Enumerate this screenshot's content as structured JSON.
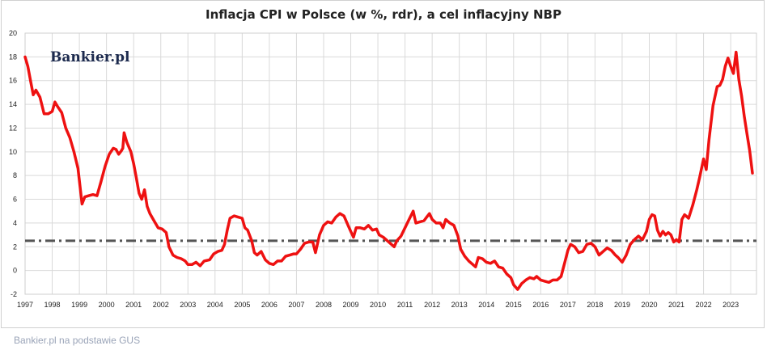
{
  "chart_data": {
    "type": "line",
    "title": "Inflacja CPI w Polsce (w %, rdr), a cel inflacyjny NBP",
    "xlabel": "",
    "ylabel": "",
    "ylim": [
      -2,
      20
    ],
    "y_ticks": [
      "-2",
      "0",
      "2",
      "4",
      "6",
      "8",
      "10",
      "12",
      "14",
      "16",
      "18",
      "20"
    ],
    "x_tick_labels": [
      "1997",
      "1998",
      "1999",
      "2000",
      "2001",
      "2002",
      "2003",
      "2004",
      "2005",
      "2006",
      "2007",
      "2008",
      "2009",
      "2010",
      "2011",
      "2012",
      "2013",
      "2014",
      "2015",
      "2016",
      "2017",
      "2018",
      "2019",
      "2020",
      "2021",
      "2022",
      "2023"
    ],
    "grid": true,
    "series": [
      {
        "color": "#ee1111",
        "points": [
          [
            1997.0,
            18.0
          ],
          [
            1997.1,
            17.2
          ],
          [
            1997.2,
            16.0
          ],
          [
            1997.3,
            14.8
          ],
          [
            1997.4,
            15.2
          ],
          [
            1997.55,
            14.6
          ],
          [
            1997.7,
            13.2
          ],
          [
            1997.85,
            13.2
          ],
          [
            1998.0,
            13.4
          ],
          [
            1998.1,
            14.2
          ],
          [
            1998.2,
            13.8
          ],
          [
            1998.35,
            13.3
          ],
          [
            1998.5,
            12.0
          ],
          [
            1998.65,
            11.2
          ],
          [
            1998.8,
            10.0
          ],
          [
            1998.95,
            8.6
          ],
          [
            1999.1,
            5.6
          ],
          [
            1999.2,
            6.2
          ],
          [
            1999.35,
            6.3
          ],
          [
            1999.5,
            6.4
          ],
          [
            1999.65,
            6.3
          ],
          [
            1999.8,
            7.5
          ],
          [
            1999.95,
            8.8
          ],
          [
            2000.1,
            9.8
          ],
          [
            2000.25,
            10.3
          ],
          [
            2000.35,
            10.2
          ],
          [
            2000.45,
            9.8
          ],
          [
            2000.55,
            10.1
          ],
          [
            2000.6,
            10.3
          ],
          [
            2000.65,
            11.6
          ],
          [
            2000.75,
            10.8
          ],
          [
            2000.9,
            10.0
          ],
          [
            2001.0,
            9.0
          ],
          [
            2001.1,
            7.8
          ],
          [
            2001.2,
            6.5
          ],
          [
            2001.3,
            6.0
          ],
          [
            2001.4,
            6.8
          ],
          [
            2001.5,
            5.4
          ],
          [
            2001.6,
            4.8
          ],
          [
            2001.75,
            4.2
          ],
          [
            2001.9,
            3.6
          ],
          [
            2002.05,
            3.5
          ],
          [
            2002.2,
            3.2
          ],
          [
            2002.3,
            2.0
          ],
          [
            2002.45,
            1.3
          ],
          [
            2002.6,
            1.1
          ],
          [
            2002.75,
            1.0
          ],
          [
            2002.9,
            0.8
          ],
          [
            2003.0,
            0.5
          ],
          [
            2003.15,
            0.5
          ],
          [
            2003.3,
            0.7
          ],
          [
            2003.45,
            0.4
          ],
          [
            2003.6,
            0.8
          ],
          [
            2003.8,
            0.9
          ],
          [
            2003.95,
            1.4
          ],
          [
            2004.1,
            1.6
          ],
          [
            2004.25,
            1.7
          ],
          [
            2004.35,
            2.2
          ],
          [
            2004.45,
            3.4
          ],
          [
            2004.55,
            4.4
          ],
          [
            2004.7,
            4.6
          ],
          [
            2004.85,
            4.5
          ],
          [
            2005.0,
            4.4
          ],
          [
            2005.1,
            3.6
          ],
          [
            2005.2,
            3.4
          ],
          [
            2005.35,
            2.5
          ],
          [
            2005.45,
            1.5
          ],
          [
            2005.55,
            1.3
          ],
          [
            2005.7,
            1.6
          ],
          [
            2005.85,
            0.9
          ],
          [
            2006.0,
            0.6
          ],
          [
            2006.15,
            0.5
          ],
          [
            2006.3,
            0.8
          ],
          [
            2006.45,
            0.8
          ],
          [
            2006.6,
            1.2
          ],
          [
            2006.75,
            1.3
          ],
          [
            2006.9,
            1.4
          ],
          [
            2007.0,
            1.4
          ],
          [
            2007.15,
            1.8
          ],
          [
            2007.3,
            2.3
          ],
          [
            2007.45,
            2.4
          ],
          [
            2007.6,
            2.4
          ],
          [
            2007.7,
            1.5
          ],
          [
            2007.85,
            3.0
          ],
          [
            2008.0,
            3.8
          ],
          [
            2008.15,
            4.1
          ],
          [
            2008.3,
            4.0
          ],
          [
            2008.45,
            4.5
          ],
          [
            2008.6,
            4.8
          ],
          [
            2008.75,
            4.6
          ],
          [
            2008.9,
            3.8
          ],
          [
            2009.0,
            3.3
          ],
          [
            2009.1,
            2.8
          ],
          [
            2009.2,
            3.6
          ],
          [
            2009.35,
            3.6
          ],
          [
            2009.5,
            3.5
          ],
          [
            2009.65,
            3.8
          ],
          [
            2009.8,
            3.4
          ],
          [
            2009.95,
            3.5
          ],
          [
            2010.05,
            3.0
          ],
          [
            2010.2,
            2.8
          ],
          [
            2010.35,
            2.5
          ],
          [
            2010.5,
            2.2
          ],
          [
            2010.6,
            2.0
          ],
          [
            2010.7,
            2.5
          ],
          [
            2010.85,
            2.9
          ],
          [
            2011.0,
            3.6
          ],
          [
            2011.15,
            4.3
          ],
          [
            2011.3,
            5.0
          ],
          [
            2011.4,
            4.0
          ],
          [
            2011.55,
            4.1
          ],
          [
            2011.7,
            4.2
          ],
          [
            2011.8,
            4.5
          ],
          [
            2011.9,
            4.8
          ],
          [
            2012.0,
            4.3
          ],
          [
            2012.15,
            4.0
          ],
          [
            2012.3,
            4.0
          ],
          [
            2012.4,
            3.6
          ],
          [
            2012.5,
            4.3
          ],
          [
            2012.65,
            4.0
          ],
          [
            2012.8,
            3.8
          ],
          [
            2012.95,
            2.9
          ],
          [
            2013.05,
            1.8
          ],
          [
            2013.2,
            1.2
          ],
          [
            2013.35,
            0.8
          ],
          [
            2013.5,
            0.5
          ],
          [
            2013.6,
            0.3
          ],
          [
            2013.7,
            1.1
          ],
          [
            2013.85,
            1.0
          ],
          [
            2014.0,
            0.7
          ],
          [
            2014.15,
            0.6
          ],
          [
            2014.3,
            0.8
          ],
          [
            2014.45,
            0.3
          ],
          [
            2014.6,
            0.2
          ],
          [
            2014.75,
            -0.3
          ],
          [
            2014.9,
            -0.6
          ],
          [
            2015.0,
            -1.2
          ],
          [
            2015.15,
            -1.6
          ],
          [
            2015.3,
            -1.1
          ],
          [
            2015.45,
            -0.8
          ],
          [
            2015.6,
            -0.6
          ],
          [
            2015.75,
            -0.7
          ],
          [
            2015.85,
            -0.5
          ],
          [
            2016.0,
            -0.8
          ],
          [
            2016.15,
            -0.9
          ],
          [
            2016.3,
            -1.0
          ],
          [
            2016.45,
            -0.8
          ],
          [
            2016.6,
            -0.8
          ],
          [
            2016.75,
            -0.5
          ],
          [
            2016.9,
            0.8
          ],
          [
            2017.0,
            1.7
          ],
          [
            2017.1,
            2.2
          ],
          [
            2017.25,
            2.0
          ],
          [
            2017.4,
            1.5
          ],
          [
            2017.55,
            1.6
          ],
          [
            2017.7,
            2.2
          ],
          [
            2017.85,
            2.3
          ],
          [
            2018.0,
            2.0
          ],
          [
            2018.15,
            1.3
          ],
          [
            2018.3,
            1.6
          ],
          [
            2018.45,
            1.9
          ],
          [
            2018.6,
            1.7
          ],
          [
            2018.75,
            1.3
          ],
          [
            2018.85,
            1.1
          ],
          [
            2019.0,
            0.7
          ],
          [
            2019.15,
            1.3
          ],
          [
            2019.3,
            2.2
          ],
          [
            2019.45,
            2.6
          ],
          [
            2019.6,
            2.9
          ],
          [
            2019.75,
            2.6
          ],
          [
            2019.9,
            3.3
          ],
          [
            2020.0,
            4.3
          ],
          [
            2020.1,
            4.7
          ],
          [
            2020.2,
            4.6
          ],
          [
            2020.3,
            3.4
          ],
          [
            2020.4,
            2.9
          ],
          [
            2020.5,
            3.3
          ],
          [
            2020.6,
            3.0
          ],
          [
            2020.7,
            3.2
          ],
          [
            2020.8,
            3.0
          ],
          [
            2020.9,
            2.4
          ],
          [
            2021.0,
            2.6
          ],
          [
            2021.1,
            2.4
          ],
          [
            2021.2,
            4.3
          ],
          [
            2021.3,
            4.7
          ],
          [
            2021.45,
            4.4
          ],
          [
            2021.6,
            5.5
          ],
          [
            2021.75,
            6.8
          ],
          [
            2021.85,
            7.8
          ],
          [
            2022.0,
            9.4
          ],
          [
            2022.1,
            8.5
          ],
          [
            2022.2,
            11.0
          ],
          [
            2022.35,
            13.9
          ],
          [
            2022.5,
            15.5
          ],
          [
            2022.6,
            15.6
          ],
          [
            2022.7,
            16.1
          ],
          [
            2022.8,
            17.2
          ],
          [
            2022.9,
            17.9
          ],
          [
            2023.0,
            17.2
          ],
          [
            2023.1,
            16.6
          ],
          [
            2023.2,
            18.4
          ],
          [
            2023.3,
            16.1
          ],
          [
            2023.4,
            14.7
          ],
          [
            2023.5,
            13.0
          ],
          [
            2023.6,
            11.5
          ],
          [
            2023.7,
            10.1
          ],
          [
            2023.8,
            8.2
          ]
        ]
      },
      {
        "type": "reference-line",
        "style": "dash-dot",
        "color": "#555555",
        "value": 2.5
      }
    ],
    "legend": "none"
  },
  "brand": {
    "logo_text": "Bankier.pl"
  },
  "source_note": "Bankier.pl na podstawie GUS"
}
